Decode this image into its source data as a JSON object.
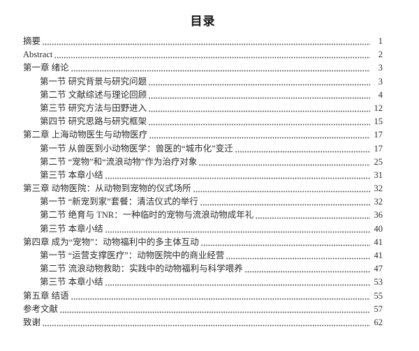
{
  "page": {
    "title": "目录"
  },
  "toc": {
    "entries": [
      {
        "label": "摘要",
        "page": "1",
        "level": 0
      },
      {
        "label": "Abstract",
        "page": "2",
        "level": 0
      },
      {
        "label": "第一章 绪论",
        "page": "3",
        "level": 0
      },
      {
        "label": "第一节 研究背景与研究问题",
        "page": "3",
        "level": 1
      },
      {
        "label": "第二节 文献综述与理论回顾",
        "page": "4",
        "level": 1
      },
      {
        "label": "第三节 研究方法与田野进入",
        "page": "12",
        "level": 1
      },
      {
        "label": "第四节 研究思路与研究框架",
        "page": "15",
        "level": 1
      },
      {
        "label": "第二章 上海动物医生与动物医疗",
        "page": "17",
        "level": 0
      },
      {
        "label": "第一节 从兽医到小动物医学：兽医的“城市化”变迁",
        "page": "17",
        "level": 1
      },
      {
        "label": "第二节 “宠物”和“流浪动物”作为治疗对象",
        "page": "25",
        "level": 1
      },
      {
        "label": "第三节 本章小结",
        "page": "31",
        "level": 1
      },
      {
        "label": "第三章 动物医院：从动物到宠物的仪式场所",
        "page": "32",
        "level": 0
      },
      {
        "label": "第一节 “新宠到家”套餐：清洁仪式的举行",
        "page": "32",
        "level": 1
      },
      {
        "label": "第二节 绝育与 TNR：一种临时的宠物与流浪动物成年礼",
        "page": "36",
        "level": 1
      },
      {
        "label": "第三节 本章小结",
        "page": "40",
        "level": 1
      },
      {
        "label": "第四章 成为“宠物”：动物福利中的多主体互动",
        "page": "41",
        "level": 0
      },
      {
        "label": "第一节 “运营支撑医疗”：动物医院中的商业经营",
        "page": "41",
        "level": 1
      },
      {
        "label": "第二节 流浪动物救助：实践中的动物福利与科学喂养",
        "page": "47",
        "level": 1
      },
      {
        "label": "第三节 本章小结",
        "page": "53",
        "level": 1
      },
      {
        "label": "第五章 结语",
        "page": "55",
        "level": 0
      },
      {
        "label": "参考文献",
        "page": "57",
        "level": 0
      },
      {
        "label": "致谢",
        "page": "62",
        "level": 0
      }
    ]
  }
}
